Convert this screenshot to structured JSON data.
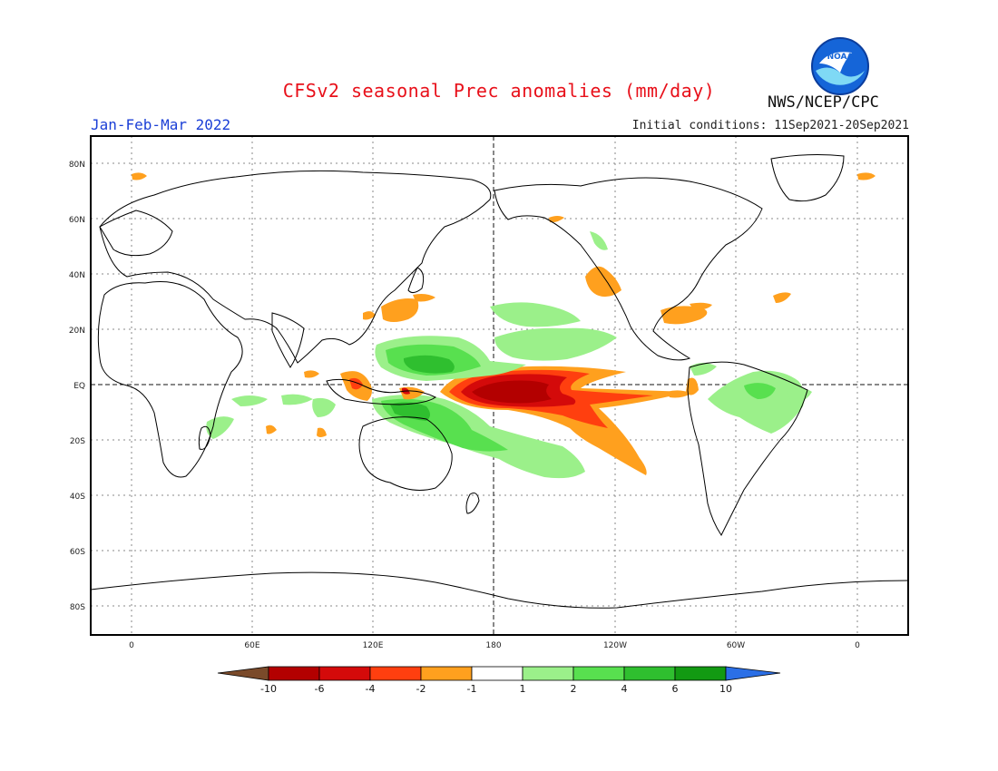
{
  "header": {
    "title": "CFSv2 seasonal Prec anomalies (mm/day)",
    "period": "Jan-Feb-Mar 2022",
    "initial_conditions": "Initial conditions: 11Sep2021-20Sep2021",
    "agency": "NWS/NCEP/CPC",
    "logo_text": "NOAA"
  },
  "map": {
    "lat_labels": [
      "80N",
      "60N",
      "40N",
      "20N",
      "EQ",
      "20S",
      "40S",
      "60S",
      "80S"
    ],
    "lon_labels": [
      "0",
      "60E",
      "120E",
      "180",
      "120W",
      "60W",
      "0"
    ]
  },
  "colorbar": {
    "labels": [
      "-10",
      "-6",
      "-4",
      "-2",
      "-1",
      "1",
      "2",
      "4",
      "6",
      "10"
    ],
    "colors": [
      "#7a4a2a",
      "#b30000",
      "#d40a0a",
      "#ff3f0f",
      "#ffa01e",
      "#ffffff",
      "#9bf08a",
      "#58e04f",
      "#2fbf2f",
      "#129a12",
      "#2b6fe6"
    ]
  }
}
